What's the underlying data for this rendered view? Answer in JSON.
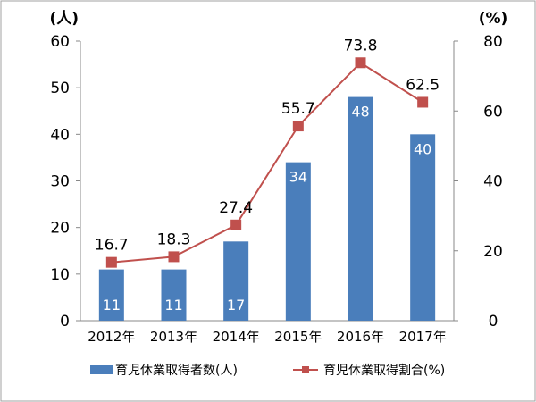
{
  "chart_data": {
    "type": "bar+line",
    "categories": [
      "2012年",
      "2013年",
      "2014年",
      "2015年",
      "2016年",
      "2017年"
    ],
    "series": [
      {
        "name": "育児休業取得者数(人)",
        "type": "bar",
        "axis": "left",
        "values": [
          11,
          11,
          17,
          34,
          48,
          40
        ],
        "color": "#4a7ebb"
      },
      {
        "name": "育児休業取得割合(%)",
        "type": "line",
        "axis": "right",
        "values": [
          16.7,
          18.3,
          27.4,
          55.7,
          73.8,
          62.5
        ],
        "color": "#c0504d"
      }
    ],
    "y_left": {
      "unit_label": "(人)",
      "range": [
        0,
        60
      ],
      "ticks": [
        "0",
        "10",
        "20",
        "30",
        "40",
        "50",
        "60"
      ]
    },
    "y_right": {
      "unit_label": "(%)",
      "range": [
        0,
        80
      ],
      "ticks": [
        "0",
        "20",
        "40",
        "60",
        "80"
      ]
    },
    "grid": false,
    "legend_position": "bottom"
  }
}
